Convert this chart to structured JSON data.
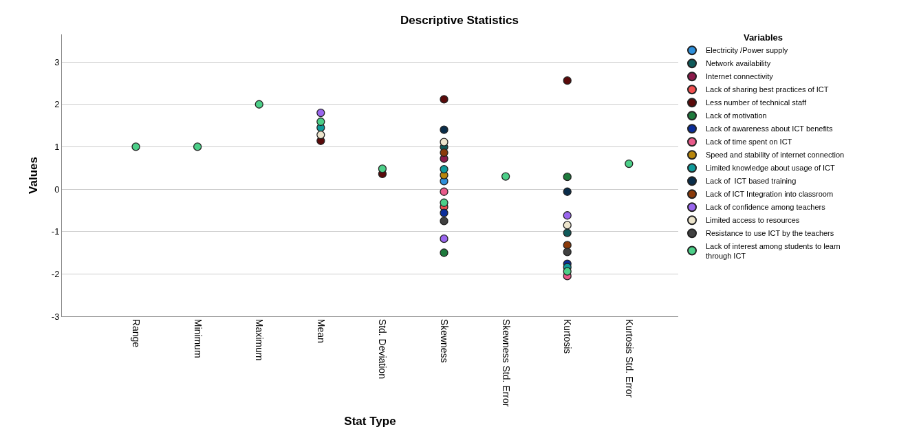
{
  "chart_data": {
    "type": "scatter",
    "title": "Descriptive Statistics",
    "xlabel": "Stat Type",
    "ylabel": "Values",
    "legend_title": "Variables",
    "legend": "top right",
    "grid": "y",
    "marker": "circle",
    "categories": [
      "Range",
      "Minimum",
      "Maximum",
      "Mean",
      "Std. Deviation",
      "Skewness",
      "Skewness Std. Error",
      "Kurtosis",
      "Kurtosis Std. Error"
    ],
    "ylim": [
      -3,
      3.65
    ],
    "yticks": [
      -3,
      -2,
      -1,
      0,
      1,
      2,
      3
    ],
    "series": [
      {
        "name": "Electricity /Power supply",
        "color": "#2e8fdb",
        "values": [
          null,
          null,
          null,
          null,
          null,
          0.19,
          null,
          null,
          null
        ]
      },
      {
        "name": "Network availability",
        "color": "#0f5a5a",
        "values": [
          null,
          null,
          null,
          null,
          null,
          0.99,
          null,
          -1.03,
          null
        ]
      },
      {
        "name": "Internet connectivity",
        "color": "#8b1a4a",
        "values": [
          null,
          null,
          null,
          null,
          null,
          0.72,
          null,
          null,
          null
        ]
      },
      {
        "name": "Lack of sharing best practices of ICT",
        "color": "#f05050",
        "values": [
          null,
          null,
          null,
          null,
          null,
          -0.42,
          null,
          null,
          null
        ]
      },
      {
        "name": "Less number of technical staff",
        "color": "#5a0a0a",
        "values": [
          null,
          null,
          null,
          1.14,
          0.36,
          2.12,
          null,
          2.56,
          null
        ]
      },
      {
        "name": "Lack of motivation",
        "color": "#1e7a3c",
        "values": [
          null,
          null,
          null,
          null,
          null,
          -1.5,
          null,
          0.29,
          null
        ]
      },
      {
        "name": "Lack of awareness about ICT benefits",
        "color": "#0a2d9a",
        "values": [
          null,
          null,
          null,
          null,
          null,
          -0.56,
          null,
          -1.76,
          null
        ]
      },
      {
        "name": "Lack of time spent on ICT",
        "color": "#e85a8a",
        "values": [
          null,
          null,
          null,
          null,
          null,
          -0.06,
          null,
          -2.05,
          null
        ]
      },
      {
        "name": "Speed and stability of internet connection",
        "color": "#b8860b",
        "values": [
          null,
          null,
          null,
          null,
          null,
          0.33,
          null,
          null,
          null
        ]
      },
      {
        "name": "Limited knowledge about usage of ICT",
        "color": "#0f9a9a",
        "values": [
          null,
          null,
          null,
          1.45,
          null,
          0.47,
          null,
          -1.84,
          null
        ]
      },
      {
        "name": "Lack of  ICT based training",
        "color": "#0a2d4a",
        "values": [
          null,
          null,
          null,
          null,
          null,
          1.4,
          null,
          -0.06,
          null
        ]
      },
      {
        "name": "Lack of ICT Integration into classroom",
        "color": "#8a3a0a",
        "values": [
          null,
          null,
          null,
          null,
          null,
          0.86,
          null,
          -1.32,
          null
        ]
      },
      {
        "name": "Lack of confidence among teachers",
        "color": "#9a66ee",
        "values": [
          null,
          null,
          null,
          1.8,
          null,
          -1.17,
          null,
          -0.62,
          null
        ]
      },
      {
        "name": "Limited access to resources",
        "color": "#ece4cc",
        "values": [
          null,
          null,
          null,
          1.28,
          null,
          1.11,
          null,
          -0.85,
          null
        ]
      },
      {
        "name": "Resistance to use ICT by the teachers",
        "color": "#404040",
        "values": [
          null,
          null,
          null,
          null,
          null,
          -0.75,
          null,
          -1.48,
          null
        ]
      },
      {
        "name": "Lack of interest among students to learn through ICT",
        "color": "#4ccf88",
        "values": [
          1,
          1,
          2,
          1.59,
          0.48,
          -0.32,
          0.3,
          -1.94,
          0.6
        ]
      }
    ]
  }
}
